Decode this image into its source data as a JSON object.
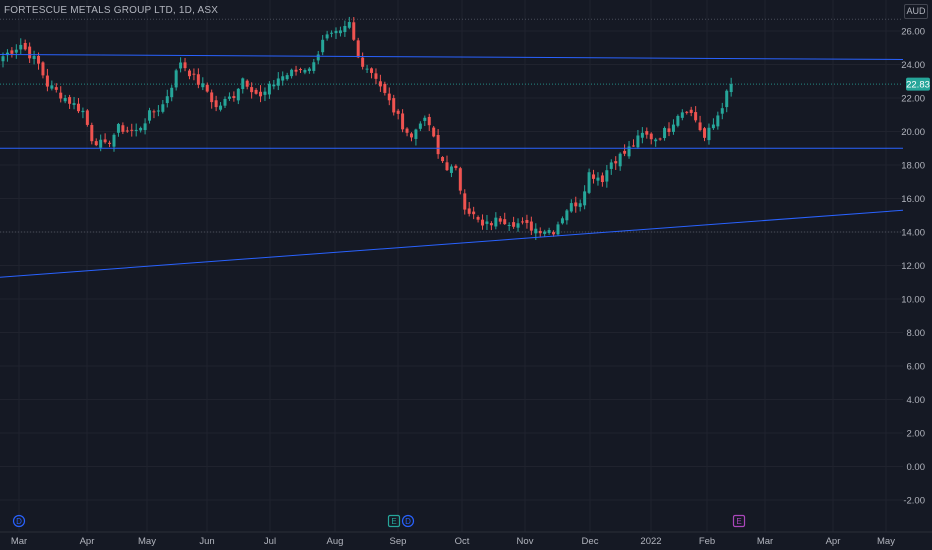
{
  "chart_data": {
    "type": "candlestick",
    "title": "FORTESCUE METALS GROUP LTD, 1D, ASX",
    "currency": "AUD",
    "ylim": [
      -3,
      27
    ],
    "y_ticks": [
      "26.00",
      "24.00",
      "22.00",
      "20.00",
      "18.00",
      "16.00",
      "14.00",
      "12.00",
      "10.00",
      "8.00",
      "6.00",
      "4.00",
      "2.00",
      "0.00",
      "-2.00"
    ],
    "x_ticks": [
      "Mar",
      "Apr",
      "May",
      "Jun",
      "Jul",
      "Aug",
      "Sep",
      "Oct",
      "Nov",
      "Dec",
      "2022",
      "Feb",
      "Mar",
      "Apr",
      "May"
    ],
    "last_price": "22.83",
    "trend_lines": [
      {
        "kind": "resistance",
        "from": 24.6,
        "to": 24.3
      },
      {
        "kind": "support",
        "from": 19.0,
        "to": 19.0
      },
      {
        "kind": "rising-support",
        "from": 11.3,
        "to": 15.3
      }
    ],
    "path": [
      [
        0,
        24.5
      ],
      [
        4,
        25.2
      ],
      [
        8,
        24.0
      ],
      [
        10,
        22.8
      ],
      [
        14,
        22.0
      ],
      [
        18,
        21.2
      ],
      [
        20,
        19.6
      ],
      [
        23,
        19.1
      ],
      [
        26,
        20.2
      ],
      [
        30,
        20.0
      ],
      [
        33,
        21.0
      ],
      [
        36,
        21.6
      ],
      [
        38,
        22.8
      ],
      [
        40,
        24.2
      ],
      [
        43,
        23.2
      ],
      [
        46,
        22.4
      ],
      [
        48,
        21.4
      ],
      [
        52,
        22.2
      ],
      [
        54,
        23.2
      ],
      [
        58,
        22.0
      ],
      [
        62,
        23.2
      ],
      [
        66,
        23.6
      ],
      [
        70,
        24.0
      ],
      [
        72,
        25.6
      ],
      [
        76,
        25.8
      ],
      [
        78,
        26.4
      ],
      [
        80,
        24.4
      ],
      [
        84,
        23.3
      ],
      [
        86,
        22.2
      ],
      [
        89,
        20.8
      ],
      [
        92,
        19.6
      ],
      [
        94,
        20.7
      ],
      [
        96,
        20.4
      ],
      [
        98,
        18.6
      ],
      [
        100,
        17.9
      ],
      [
        102,
        17.6
      ],
      [
        104,
        15.6
      ],
      [
        108,
        14.3
      ],
      [
        112,
        14.8
      ],
      [
        116,
        14.5
      ],
      [
        120,
        14.2
      ],
      [
        124,
        14.1
      ],
      [
        127,
        15.4
      ],
      [
        130,
        15.9
      ],
      [
        132,
        17.5
      ],
      [
        135,
        17.2
      ],
      [
        137,
        18.2
      ],
      [
        140,
        18.7
      ],
      [
        144,
        19.8
      ],
      [
        147,
        19.6
      ],
      [
        150,
        20.2
      ],
      [
        152,
        21.1
      ],
      [
        154,
        21.4
      ],
      [
        156,
        20.7
      ],
      [
        158,
        19.6
      ],
      [
        160,
        20.4
      ],
      [
        162,
        21.6
      ],
      [
        164,
        22.83
      ]
    ],
    "events": [
      {
        "label": "D",
        "x": "Mar",
        "color": "#2962ff"
      },
      {
        "label": "E",
        "x": "Sep",
        "color": "#26a69a"
      },
      {
        "label": "D",
        "x": "Sep",
        "color": "#2962ff"
      },
      {
        "label": "E",
        "x": "Feb",
        "color": "#ab47bc"
      }
    ],
    "colors": {
      "background": "#151924",
      "up": "#26a69a",
      "down": "#ef5350",
      "trend_line": "#2962ff",
      "grid": "#20232e",
      "text": "#b2b5be"
    }
  }
}
